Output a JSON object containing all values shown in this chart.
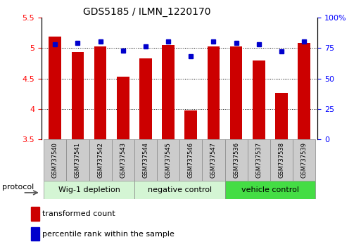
{
  "title": "GDS5185 / ILMN_1220170",
  "samples": [
    "GSM737540",
    "GSM737541",
    "GSM737542",
    "GSM737543",
    "GSM737544",
    "GSM737545",
    "GSM737546",
    "GSM737547",
    "GSM737536",
    "GSM737537",
    "GSM737538",
    "GSM737539"
  ],
  "transformed_counts": [
    5.19,
    4.93,
    5.03,
    4.53,
    4.83,
    5.05,
    3.97,
    5.03,
    5.03,
    4.79,
    4.26,
    5.08
  ],
  "percentile_ranks": [
    78,
    79,
    80,
    73,
    76,
    80,
    68,
    80,
    79,
    78,
    72,
    80
  ],
  "groups": [
    {
      "label": "Wig-1 depletion",
      "start": 0,
      "end": 4,
      "color": "#d4f5d4"
    },
    {
      "label": "negative control",
      "start": 4,
      "end": 8,
      "color": "#d4f5d4"
    },
    {
      "label": "vehicle control",
      "start": 8,
      "end": 12,
      "color": "#44dd44"
    }
  ],
  "ylim_left": [
    3.5,
    5.5
  ],
  "ylim_right": [
    0,
    100
  ],
  "yticks_left": [
    3.5,
    4.0,
    4.5,
    5.0,
    5.5
  ],
  "ytick_labels_left": [
    "3.5",
    "4",
    "4.5",
    "5",
    "5.5"
  ],
  "yticks_right": [
    0,
    25,
    50,
    75,
    100
  ],
  "ytick_labels_right": [
    "0",
    "25",
    "50",
    "75",
    "100%"
  ],
  "bar_color": "#CC0000",
  "dot_color": "#0000CC",
  "bar_width": 0.55,
  "legend_red_label": "transformed count",
  "legend_blue_label": "percentile rank within the sample",
  "protocol_label": "protocol",
  "gridline_y": [
    4.0,
    4.5,
    5.0
  ],
  "sample_box_color": "#cccccc",
  "group_border_color": "#888888"
}
